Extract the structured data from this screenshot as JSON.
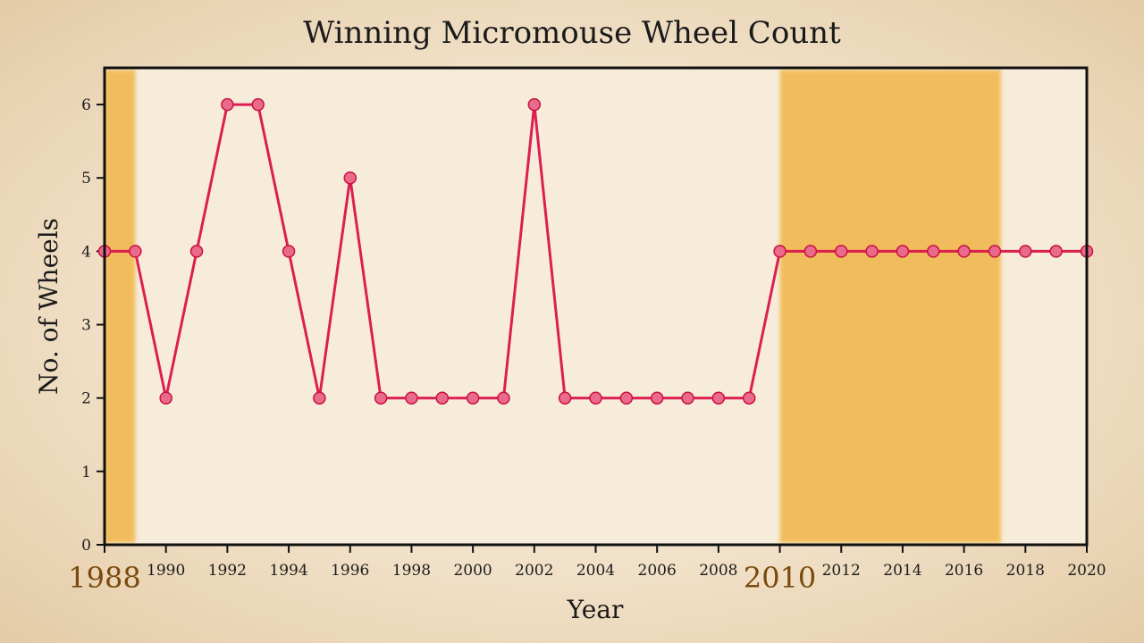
{
  "chart_data": {
    "type": "line",
    "title": "Winning Micromouse Wheel Count",
    "xlabel": "Year",
    "ylabel": "No. of Wheels",
    "xlim": [
      1988,
      2020
    ],
    "ylim": [
      0,
      6.5
    ],
    "x_ticks": [
      1990,
      1992,
      1994,
      1996,
      1998,
      2000,
      2002,
      2004,
      2006,
      2008,
      2012,
      2014,
      2016,
      2018,
      2020
    ],
    "y_ticks": [
      0,
      1,
      2,
      3,
      4,
      5,
      6
    ],
    "highlight_labels": [
      {
        "year": 1988,
        "label": "1988"
      },
      {
        "year": 2010,
        "label": "2010"
      }
    ],
    "shaded_spans": [
      {
        "from": 1988,
        "to": 1989
      },
      {
        "from": 2010,
        "to": 2017.2
      }
    ],
    "x": [
      1988,
      1989,
      1990,
      1991,
      1992,
      1993,
      1994,
      1995,
      1996,
      1997,
      1998,
      1999,
      2000,
      2001,
      2002,
      2003,
      2004,
      2005,
      2006,
      2007,
      2008,
      2009,
      2010,
      2011,
      2012,
      2013,
      2014,
      2015,
      2016,
      2017,
      2018,
      2019,
      2020
    ],
    "values": [
      4,
      4,
      2,
      4,
      6,
      6,
      4,
      2,
      5,
      2,
      2,
      2,
      2,
      2,
      6,
      2,
      2,
      2,
      2,
      2,
      2,
      2,
      4,
      4,
      4,
      4,
      4,
      4,
      4,
      4,
      4,
      4,
      4
    ],
    "grid": false,
    "colors": {
      "line": "#dc1f4f",
      "marker_fill": "#e96a8a",
      "marker_edge": "#c8123f",
      "shade": "#f0b544",
      "highlight_label": "#7a4a0c",
      "frame": "#111111"
    }
  }
}
